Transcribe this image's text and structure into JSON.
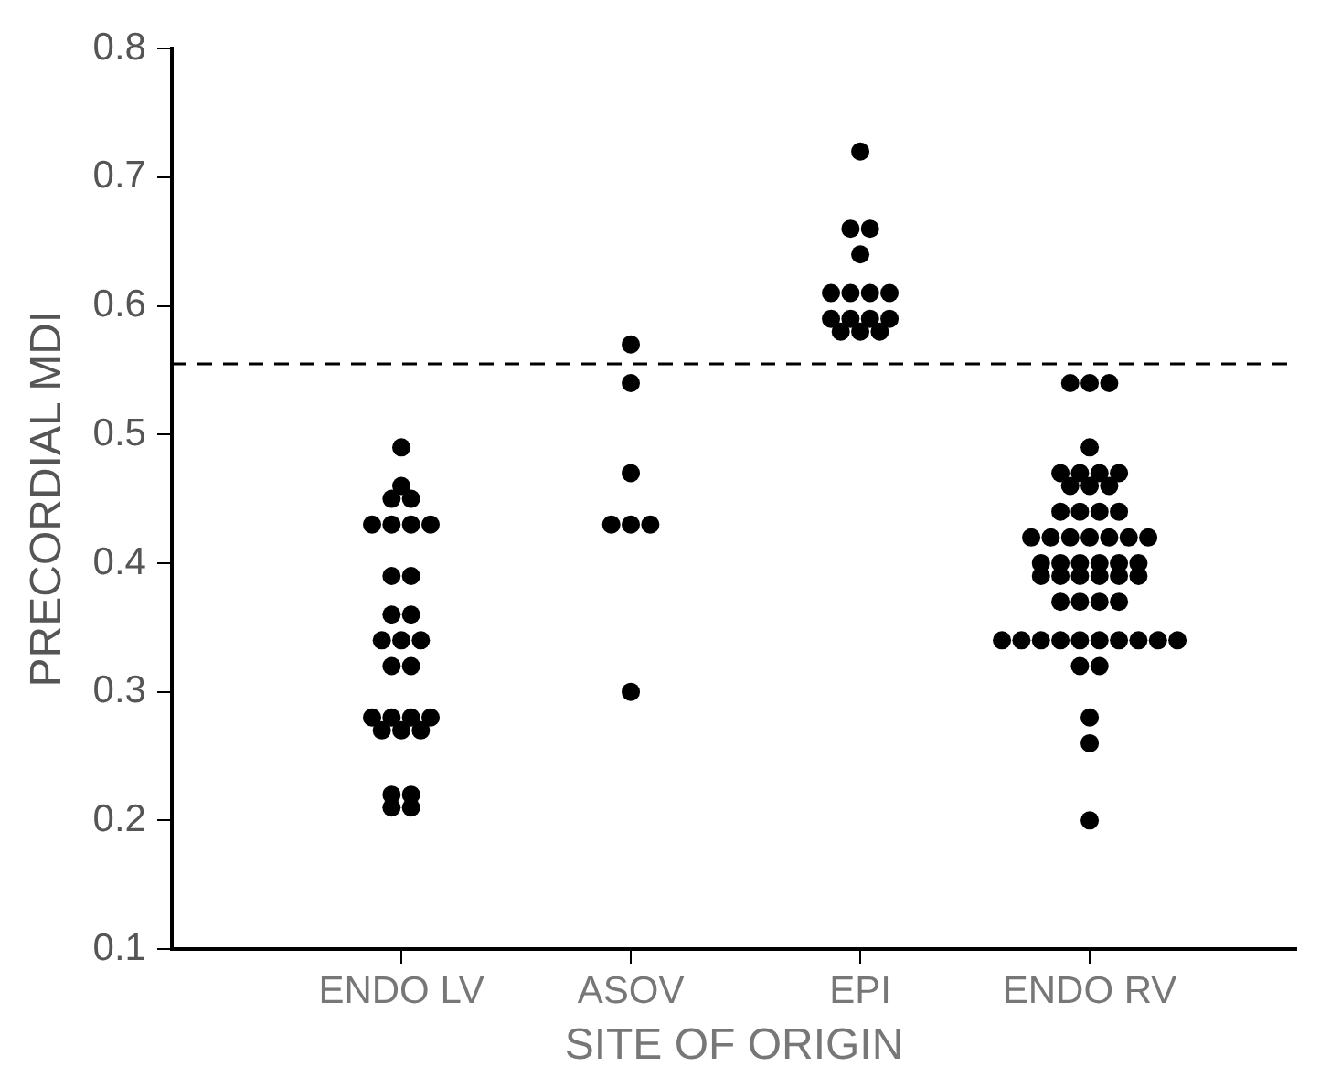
{
  "chart_data": {
    "type": "scatter",
    "xlabel": "SITE OF ORIGIN",
    "ylabel": "PRECORDIAL MDI",
    "categories": [
      "ENDO LV",
      "ASOV",
      "EPI",
      "ENDO RV"
    ],
    "ylim": [
      0.1,
      0.8
    ],
    "yticks": [
      0.1,
      0.2,
      0.3,
      0.4,
      0.5,
      0.6,
      0.7,
      0.8
    ],
    "grid": false,
    "marker": "circle",
    "series": [
      {
        "color": "#000000",
        "x": [
          "ENDO LV",
          "ENDO LV",
          "ENDO LV",
          "ENDO LV",
          "ENDO LV",
          "ENDO LV",
          "ENDO LV",
          "ENDO LV",
          "ENDO LV",
          "ENDO LV",
          "ENDO LV",
          "ENDO LV",
          "ENDO LV",
          "ENDO LV",
          "ENDO LV",
          "ENDO LV",
          "ENDO LV",
          "ENDO LV",
          "ENDO LV",
          "ENDO LV",
          "ENDO LV",
          "ENDO LV",
          "ENDO LV",
          "ENDO LV",
          "ENDO LV",
          "ENDO LV",
          "ENDO LV",
          "ENDO LV",
          "ASOV",
          "ASOV",
          "ASOV",
          "ASOV",
          "ASOV",
          "ASOV",
          "ASOV",
          "EPI",
          "EPI",
          "EPI",
          "EPI",
          "EPI",
          "EPI",
          "EPI",
          "EPI",
          "EPI",
          "EPI",
          "EPI",
          "EPI",
          "EPI",
          "EPI",
          "EPI",
          "ENDO RV",
          "ENDO RV",
          "ENDO RV",
          "ENDO RV",
          "ENDO RV",
          "ENDO RV",
          "ENDO RV",
          "ENDO RV",
          "ENDO RV",
          "ENDO RV",
          "ENDO RV",
          "ENDO RV",
          "ENDO RV",
          "ENDO RV",
          "ENDO RV",
          "ENDO RV",
          "ENDO RV",
          "ENDO RV",
          "ENDO RV",
          "ENDO RV",
          "ENDO RV",
          "ENDO RV",
          "ENDO RV",
          "ENDO RV",
          "ENDO RV",
          "ENDO RV",
          "ENDO RV",
          "ENDO RV",
          "ENDO RV",
          "ENDO RV",
          "ENDO RV",
          "ENDO RV",
          "ENDO RV",
          "ENDO RV",
          "ENDO RV",
          "ENDO RV",
          "ENDO RV",
          "ENDO RV",
          "ENDO RV",
          "ENDO RV",
          "ENDO RV",
          "ENDO RV",
          "ENDO RV",
          "ENDO RV",
          "ENDO RV",
          "ENDO RV",
          "ENDO RV",
          "ENDO RV",
          "ENDO RV",
          "ENDO RV",
          "ENDO RV",
          "ENDO RV",
          "ENDO RV"
        ],
        "values": [
          0.49,
          0.46,
          0.45,
          0.45,
          0.43,
          0.43,
          0.43,
          0.43,
          0.39,
          0.39,
          0.36,
          0.36,
          0.34,
          0.34,
          0.34,
          0.32,
          0.32,
          0.28,
          0.28,
          0.28,
          0.28,
          0.27,
          0.27,
          0.27,
          0.22,
          0.22,
          0.21,
          0.21,
          0.57,
          0.54,
          0.47,
          0.43,
          0.43,
          0.43,
          0.3,
          0.72,
          0.66,
          0.66,
          0.64,
          0.61,
          0.61,
          0.61,
          0.61,
          0.59,
          0.59,
          0.59,
          0.59,
          0.58,
          0.58,
          0.58,
          0.54,
          0.54,
          0.54,
          0.49,
          0.47,
          0.47,
          0.47,
          0.47,
          0.46,
          0.46,
          0.46,
          0.44,
          0.44,
          0.44,
          0.44,
          0.42,
          0.42,
          0.42,
          0.42,
          0.42,
          0.42,
          0.42,
          0.4,
          0.4,
          0.4,
          0.4,
          0.4,
          0.4,
          0.39,
          0.39,
          0.39,
          0.39,
          0.39,
          0.39,
          0.37,
          0.37,
          0.37,
          0.37,
          0.34,
          0.34,
          0.34,
          0.34,
          0.34,
          0.34,
          0.34,
          0.34,
          0.34,
          0.34,
          0.32,
          0.32,
          0.28,
          0.26,
          0.2
        ]
      }
    ],
    "ref_lines": [
      {
        "axis": "y",
        "value": 0.555,
        "line_style": "dashed"
      }
    ]
  }
}
